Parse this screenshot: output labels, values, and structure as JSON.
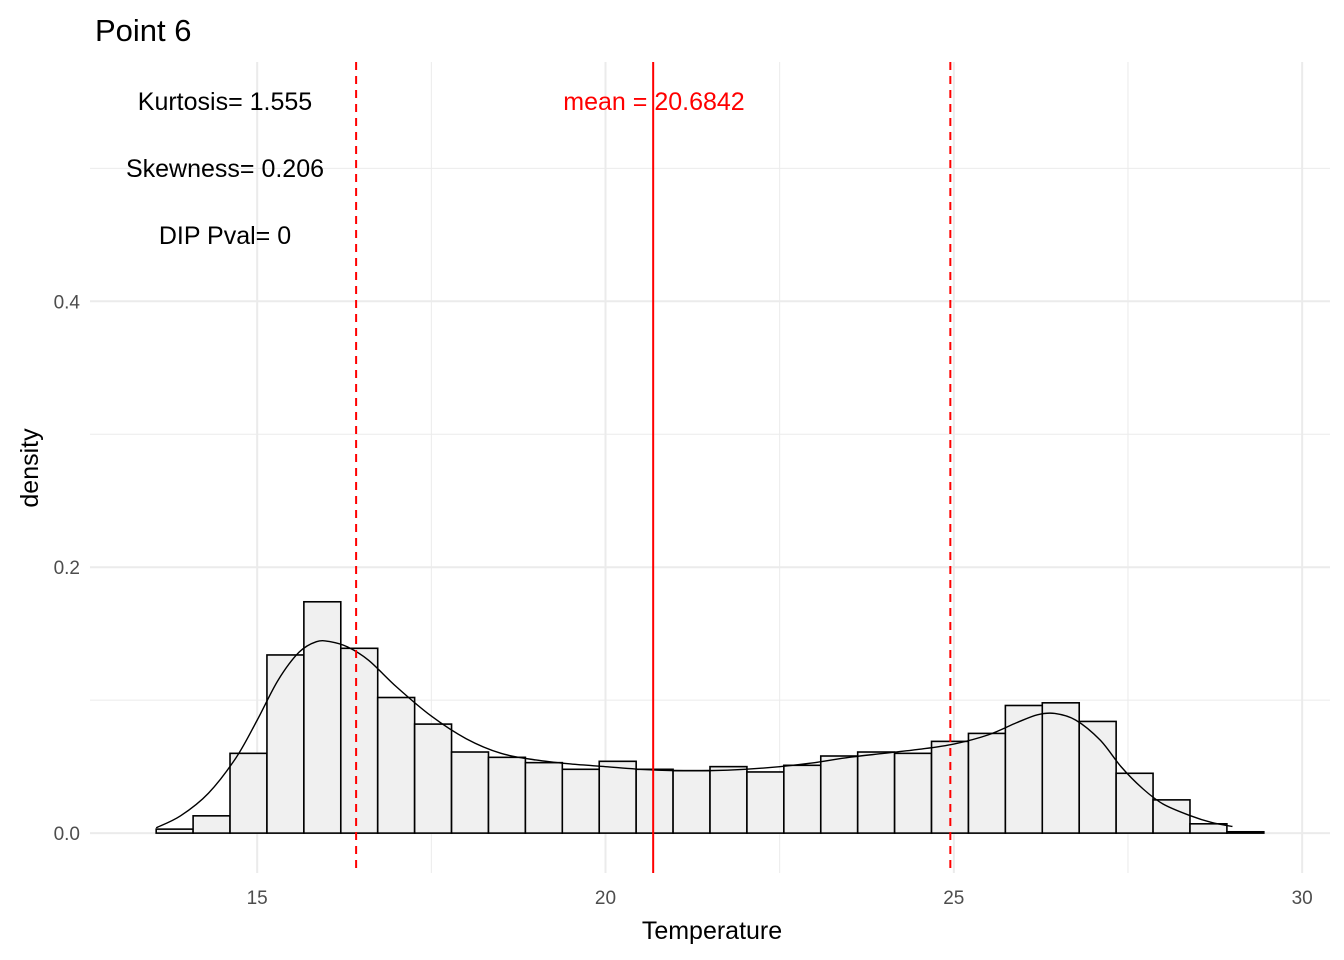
{
  "chart_data": {
    "type": "bar",
    "title": "Point 6",
    "xlabel": "Temperature",
    "ylabel": "density",
    "xlim": [
      12.6,
      30.4
    ],
    "ylim": [
      -0.03,
      0.58
    ],
    "x_ticks": [
      15,
      20,
      25,
      30
    ],
    "x_tick_labels": [
      "15",
      "20",
      "25",
      "30"
    ],
    "y_ticks": [
      0.0,
      0.2,
      0.4
    ],
    "y_tick_labels": [
      "0.0",
      "0.2",
      "0.4"
    ],
    "grid": true,
    "bin_width": 0.53,
    "bins": [
      {
        "x0": 13.55,
        "x1": 14.08,
        "density": 0.003
      },
      {
        "x0": 14.08,
        "x1": 14.61,
        "density": 0.013
      },
      {
        "x0": 14.61,
        "x1": 15.14,
        "density": 0.06
      },
      {
        "x0": 15.14,
        "x1": 15.67,
        "density": 0.134
      },
      {
        "x0": 15.67,
        "x1": 16.2,
        "density": 0.174
      },
      {
        "x0": 16.2,
        "x1": 16.73,
        "density": 0.139
      },
      {
        "x0": 16.73,
        "x1": 17.26,
        "density": 0.102
      },
      {
        "x0": 17.26,
        "x1": 17.79,
        "density": 0.082
      },
      {
        "x0": 17.79,
        "x1": 18.32,
        "density": 0.061
      },
      {
        "x0": 18.32,
        "x1": 18.85,
        "density": 0.057
      },
      {
        "x0": 18.85,
        "x1": 19.38,
        "density": 0.053
      },
      {
        "x0": 19.38,
        "x1": 19.91,
        "density": 0.048
      },
      {
        "x0": 19.91,
        "x1": 20.44,
        "density": 0.054
      },
      {
        "x0": 20.44,
        "x1": 20.97,
        "density": 0.048
      },
      {
        "x0": 20.97,
        "x1": 21.5,
        "density": 0.047
      },
      {
        "x0": 21.5,
        "x1": 22.03,
        "density": 0.05
      },
      {
        "x0": 22.03,
        "x1": 22.56,
        "density": 0.046
      },
      {
        "x0": 22.56,
        "x1": 23.09,
        "density": 0.051
      },
      {
        "x0": 23.09,
        "x1": 23.62,
        "density": 0.058
      },
      {
        "x0": 23.62,
        "x1": 24.15,
        "density": 0.061
      },
      {
        "x0": 24.15,
        "x1": 24.68,
        "density": 0.06
      },
      {
        "x0": 24.68,
        "x1": 25.21,
        "density": 0.069
      },
      {
        "x0": 25.21,
        "x1": 25.74,
        "density": 0.075
      },
      {
        "x0": 25.74,
        "x1": 26.27,
        "density": 0.096
      },
      {
        "x0": 26.27,
        "x1": 26.8,
        "density": 0.098
      },
      {
        "x0": 26.8,
        "x1": 27.33,
        "density": 0.084
      },
      {
        "x0": 27.33,
        "x1": 27.86,
        "density": 0.045
      },
      {
        "x0": 27.86,
        "x1": 28.39,
        "density": 0.025
      },
      {
        "x0": 28.39,
        "x1": 28.92,
        "density": 0.007
      },
      {
        "x0": 28.92,
        "x1": 29.45,
        "density": 0.001
      }
    ],
    "density_curve": {
      "x": [
        13.55,
        13.9,
        14.3,
        14.7,
        15.0,
        15.3,
        15.6,
        15.85,
        16.05,
        16.3,
        16.6,
        17.0,
        17.5,
        18.0,
        18.5,
        19.0,
        19.5,
        20.0,
        20.5,
        21.0,
        21.5,
        22.0,
        22.5,
        23.0,
        23.5,
        24.0,
        24.5,
        25.0,
        25.5,
        25.9,
        26.2,
        26.45,
        26.75,
        27.1,
        27.4,
        27.7,
        28.0,
        28.4,
        28.7,
        29.0
      ],
      "y": [
        0.004,
        0.013,
        0.03,
        0.057,
        0.085,
        0.115,
        0.136,
        0.144,
        0.144,
        0.14,
        0.13,
        0.11,
        0.088,
        0.071,
        0.06,
        0.055,
        0.052,
        0.05,
        0.048,
        0.047,
        0.047,
        0.048,
        0.05,
        0.053,
        0.057,
        0.06,
        0.063,
        0.067,
        0.074,
        0.083,
        0.089,
        0.09,
        0.085,
        0.07,
        0.05,
        0.034,
        0.022,
        0.013,
        0.008,
        0.005
      ]
    },
    "mean_line": {
      "x": 20.6842,
      "label": "mean = 20.6842",
      "color": "#ff0000"
    },
    "dashed_lines": [
      {
        "x": 16.42,
        "color": "#ff0000"
      },
      {
        "x": 24.95,
        "color": "#ff0000"
      }
    ],
    "annotations": [
      {
        "text": "Kurtosis= 1.555"
      },
      {
        "text": "Skewness= 0.206"
      },
      {
        "text": "DIP Pval= 0"
      }
    ],
    "colors": {
      "bar_fill": "#f0f0f0",
      "bar_stroke": "#000000",
      "grid": "#ebebeb"
    }
  }
}
